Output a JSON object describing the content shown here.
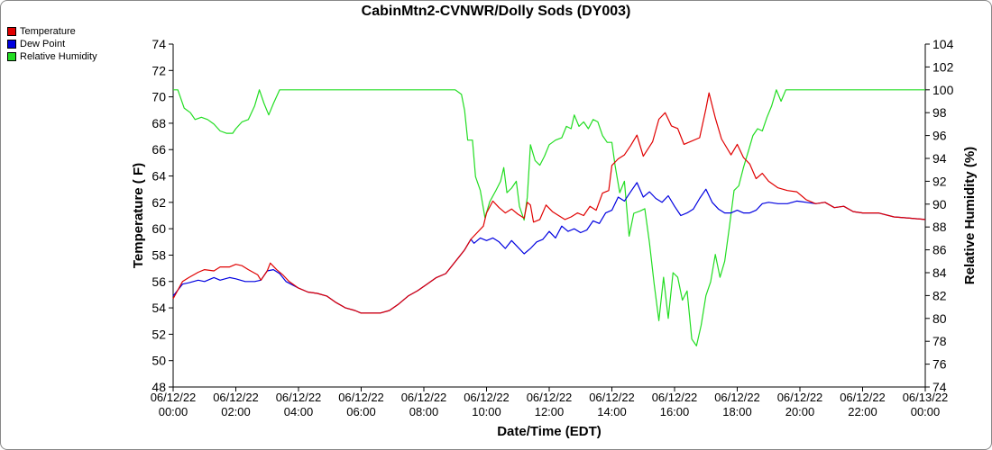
{
  "chart_data": {
    "type": "line",
    "title": "CabinMtn2-CVNWR/Dolly Sods (DY003)",
    "xlabel": "Date/Time (EDT)",
    "ylabel_left": "Temperature ( F)",
    "ylabel_right": "Relative Humidity (%)",
    "x_range_hours": [
      0,
      24
    ],
    "x_ticks": [
      {
        "date": "06/12/22",
        "time": "00:00"
      },
      {
        "date": "06/12/22",
        "time": "02:00"
      },
      {
        "date": "06/12/22",
        "time": "04:00"
      },
      {
        "date": "06/12/22",
        "time": "06:00"
      },
      {
        "date": "06/12/22",
        "time": "08:00"
      },
      {
        "date": "06/12/22",
        "time": "10:00"
      },
      {
        "date": "06/12/22",
        "time": "12:00"
      },
      {
        "date": "06/12/22",
        "time": "14:00"
      },
      {
        "date": "06/12/22",
        "time": "16:00"
      },
      {
        "date": "06/12/22",
        "time": "18:00"
      },
      {
        "date": "06/12/22",
        "time": "20:00"
      },
      {
        "date": "06/12/22",
        "time": "22:00"
      },
      {
        "date": "06/13/22",
        "time": "00:00"
      }
    ],
    "ylim_left": [
      48,
      74
    ],
    "left_ticks": [
      48,
      50,
      52,
      54,
      56,
      58,
      60,
      62,
      64,
      66,
      68,
      70,
      72,
      74
    ],
    "ylim_right": [
      74,
      104
    ],
    "right_ticks": [
      74,
      76,
      78,
      80,
      82,
      84,
      86,
      88,
      90,
      92,
      94,
      96,
      98,
      100,
      102,
      104
    ],
    "grid": false,
    "legend_position": "top-left",
    "series": [
      {
        "name": "Temperature",
        "axis": "left",
        "color": "#e00000",
        "points": [
          [
            0.0,
            54.7
          ],
          [
            0.3,
            56.0
          ],
          [
            0.5,
            56.3
          ],
          [
            0.8,
            56.7
          ],
          [
            1.0,
            56.9
          ],
          [
            1.3,
            56.8
          ],
          [
            1.5,
            57.1
          ],
          [
            1.8,
            57.1
          ],
          [
            2.0,
            57.3
          ],
          [
            2.2,
            57.2
          ],
          [
            2.4,
            56.9
          ],
          [
            2.7,
            56.5
          ],
          [
            2.8,
            56.1
          ],
          [
            3.0,
            56.8
          ],
          [
            3.1,
            57.4
          ],
          [
            3.3,
            56.9
          ],
          [
            3.5,
            56.5
          ],
          [
            3.7,
            56.0
          ],
          [
            4.0,
            55.5
          ],
          [
            4.3,
            55.2
          ],
          [
            4.6,
            55.1
          ],
          [
            4.9,
            54.9
          ],
          [
            5.2,
            54.4
          ],
          [
            5.5,
            54.0
          ],
          [
            5.8,
            53.8
          ],
          [
            6.0,
            53.6
          ],
          [
            6.3,
            53.6
          ],
          [
            6.6,
            53.6
          ],
          [
            6.9,
            53.8
          ],
          [
            7.2,
            54.3
          ],
          [
            7.5,
            54.9
          ],
          [
            7.8,
            55.3
          ],
          [
            8.1,
            55.8
          ],
          [
            8.4,
            56.3
          ],
          [
            8.7,
            56.6
          ],
          [
            9.0,
            57.5
          ],
          [
            9.3,
            58.4
          ],
          [
            9.5,
            59.2
          ],
          [
            9.7,
            59.7
          ],
          [
            9.9,
            60.2
          ],
          [
            10.0,
            61.2
          ],
          [
            10.2,
            62.1
          ],
          [
            10.4,
            61.6
          ],
          [
            10.6,
            61.2
          ],
          [
            10.8,
            61.5
          ],
          [
            11.0,
            61.1
          ],
          [
            11.2,
            60.8
          ],
          [
            11.3,
            62.0
          ],
          [
            11.4,
            61.8
          ],
          [
            11.5,
            60.5
          ],
          [
            11.7,
            60.7
          ],
          [
            11.9,
            61.8
          ],
          [
            12.1,
            61.3
          ],
          [
            12.3,
            61.0
          ],
          [
            12.5,
            60.7
          ],
          [
            12.7,
            60.9
          ],
          [
            12.9,
            61.2
          ],
          [
            13.1,
            61.0
          ],
          [
            13.3,
            61.7
          ],
          [
            13.5,
            61.4
          ],
          [
            13.7,
            62.7
          ],
          [
            13.9,
            62.9
          ],
          [
            14.0,
            64.8
          ],
          [
            14.2,
            65.3
          ],
          [
            14.4,
            65.6
          ],
          [
            14.6,
            66.3
          ],
          [
            14.8,
            67.1
          ],
          [
            15.0,
            65.5
          ],
          [
            15.3,
            66.6
          ],
          [
            15.5,
            68.3
          ],
          [
            15.7,
            68.8
          ],
          [
            15.9,
            67.8
          ],
          [
            16.1,
            67.6
          ],
          [
            16.3,
            66.4
          ],
          [
            16.5,
            66.6
          ],
          [
            16.8,
            66.9
          ],
          [
            17.0,
            69.1
          ],
          [
            17.1,
            70.3
          ],
          [
            17.3,
            68.4
          ],
          [
            17.5,
            66.8
          ],
          [
            17.8,
            65.6
          ],
          [
            18.0,
            66.4
          ],
          [
            18.2,
            65.4
          ],
          [
            18.4,
            64.9
          ],
          [
            18.6,
            63.8
          ],
          [
            18.8,
            64.2
          ],
          [
            19.0,
            63.6
          ],
          [
            19.3,
            63.1
          ],
          [
            19.6,
            62.9
          ],
          [
            19.9,
            62.8
          ],
          [
            20.2,
            62.2
          ],
          [
            20.5,
            61.9
          ],
          [
            20.8,
            62.0
          ],
          [
            21.1,
            61.6
          ],
          [
            21.4,
            61.7
          ],
          [
            21.7,
            61.3
          ],
          [
            22.0,
            61.2
          ],
          [
            22.5,
            61.2
          ],
          [
            23.0,
            60.9
          ],
          [
            23.5,
            60.8
          ],
          [
            24.0,
            60.7
          ]
        ]
      },
      {
        "name": "Dew Point",
        "axis": "left",
        "color": "#0000e0",
        "points": [
          [
            0.0,
            54.9
          ],
          [
            0.3,
            55.8
          ],
          [
            0.5,
            55.9
          ],
          [
            0.8,
            56.1
          ],
          [
            1.0,
            56.0
          ],
          [
            1.3,
            56.3
          ],
          [
            1.5,
            56.1
          ],
          [
            1.8,
            56.3
          ],
          [
            2.0,
            56.2
          ],
          [
            2.3,
            56.0
          ],
          [
            2.6,
            56.0
          ],
          [
            2.8,
            56.1
          ],
          [
            3.0,
            56.8
          ],
          [
            3.2,
            56.9
          ],
          [
            3.4,
            56.6
          ],
          [
            3.6,
            56.0
          ],
          [
            4.0,
            55.5
          ],
          [
            4.3,
            55.2
          ],
          [
            4.6,
            55.1
          ],
          [
            4.9,
            54.9
          ],
          [
            5.2,
            54.4
          ],
          [
            5.5,
            54.0
          ],
          [
            5.8,
            53.8
          ],
          [
            6.0,
            53.6
          ],
          [
            6.3,
            53.6
          ],
          [
            6.6,
            53.6
          ],
          [
            6.9,
            53.8
          ],
          [
            7.2,
            54.3
          ],
          [
            7.5,
            54.9
          ],
          [
            7.8,
            55.3
          ],
          [
            8.1,
            55.8
          ],
          [
            8.4,
            56.3
          ],
          [
            8.7,
            56.6
          ],
          [
            9.0,
            57.5
          ],
          [
            9.3,
            58.4
          ],
          [
            9.5,
            59.2
          ],
          [
            9.6,
            58.9
          ],
          [
            9.8,
            59.3
          ],
          [
            10.0,
            59.1
          ],
          [
            10.2,
            59.3
          ],
          [
            10.4,
            59.0
          ],
          [
            10.6,
            58.5
          ],
          [
            10.8,
            59.1
          ],
          [
            11.0,
            58.6
          ],
          [
            11.2,
            58.1
          ],
          [
            11.4,
            58.5
          ],
          [
            11.6,
            59.0
          ],
          [
            11.8,
            59.2
          ],
          [
            12.0,
            59.8
          ],
          [
            12.2,
            59.3
          ],
          [
            12.4,
            60.2
          ],
          [
            12.6,
            59.8
          ],
          [
            12.8,
            60.0
          ],
          [
            13.0,
            59.7
          ],
          [
            13.2,
            59.9
          ],
          [
            13.4,
            60.6
          ],
          [
            13.6,
            60.4
          ],
          [
            13.8,
            61.2
          ],
          [
            14.0,
            61.4
          ],
          [
            14.2,
            62.4
          ],
          [
            14.4,
            62.1
          ],
          [
            14.6,
            62.8
          ],
          [
            14.8,
            63.5
          ],
          [
            15.0,
            62.4
          ],
          [
            15.2,
            62.8
          ],
          [
            15.4,
            62.3
          ],
          [
            15.6,
            62.0
          ],
          [
            15.8,
            62.5
          ],
          [
            16.0,
            61.7
          ],
          [
            16.2,
            61.0
          ],
          [
            16.4,
            61.2
          ],
          [
            16.6,
            61.5
          ],
          [
            16.8,
            62.3
          ],
          [
            17.0,
            63.0
          ],
          [
            17.2,
            62.0
          ],
          [
            17.4,
            61.5
          ],
          [
            17.6,
            61.2
          ],
          [
            17.8,
            61.2
          ],
          [
            18.0,
            61.4
          ],
          [
            18.2,
            61.2
          ],
          [
            18.4,
            61.2
          ],
          [
            18.6,
            61.4
          ],
          [
            18.8,
            61.9
          ],
          [
            19.0,
            62.0
          ],
          [
            19.3,
            61.9
          ],
          [
            19.6,
            61.9
          ],
          [
            19.9,
            62.1
          ],
          [
            20.2,
            62.0
          ],
          [
            20.5,
            61.9
          ],
          [
            20.8,
            62.0
          ],
          [
            21.1,
            61.6
          ],
          [
            21.4,
            61.7
          ],
          [
            21.7,
            61.3
          ],
          [
            22.0,
            61.2
          ],
          [
            22.5,
            61.2
          ],
          [
            23.0,
            60.9
          ],
          [
            23.5,
            60.8
          ],
          [
            24.0,
            60.7
          ]
        ]
      },
      {
        "name": "Relative Humidity",
        "axis": "right",
        "color": "#22dd22",
        "points": [
          [
            0.0,
            100.0
          ],
          [
            0.15,
            100.0
          ],
          [
            0.35,
            98.4
          ],
          [
            0.55,
            98.0
          ],
          [
            0.7,
            97.4
          ],
          [
            0.9,
            97.6
          ],
          [
            1.1,
            97.4
          ],
          [
            1.3,
            97.0
          ],
          [
            1.5,
            96.4
          ],
          [
            1.7,
            96.2
          ],
          [
            1.9,
            96.2
          ],
          [
            2.0,
            96.6
          ],
          [
            2.2,
            97.2
          ],
          [
            2.4,
            97.4
          ],
          [
            2.6,
            98.6
          ],
          [
            2.75,
            100.0
          ],
          [
            2.9,
            98.8
          ],
          [
            3.05,
            97.8
          ],
          [
            3.2,
            98.8
          ],
          [
            3.4,
            100.0
          ],
          [
            4.0,
            100.0
          ],
          [
            6.0,
            100.0
          ],
          [
            8.0,
            100.0
          ],
          [
            9.0,
            100.0
          ],
          [
            9.2,
            99.6
          ],
          [
            9.3,
            98.2
          ],
          [
            9.4,
            95.6
          ],
          [
            9.55,
            95.6
          ],
          [
            9.65,
            92.4
          ],
          [
            9.8,
            91.2
          ],
          [
            9.95,
            88.8
          ],
          [
            10.1,
            90.2
          ],
          [
            10.3,
            91.2
          ],
          [
            10.45,
            92.0
          ],
          [
            10.55,
            93.2
          ],
          [
            10.65,
            91.0
          ],
          [
            10.8,
            91.4
          ],
          [
            10.95,
            92.0
          ],
          [
            11.05,
            89.8
          ],
          [
            11.2,
            88.6
          ],
          [
            11.3,
            90.6
          ],
          [
            11.4,
            95.2
          ],
          [
            11.55,
            93.8
          ],
          [
            11.7,
            93.4
          ],
          [
            11.85,
            94.2
          ],
          [
            12.0,
            95.2
          ],
          [
            12.2,
            95.6
          ],
          [
            12.4,
            95.8
          ],
          [
            12.55,
            96.8
          ],
          [
            12.7,
            96.6
          ],
          [
            12.8,
            97.8
          ],
          [
            12.95,
            96.8
          ],
          [
            13.1,
            97.2
          ],
          [
            13.25,
            96.6
          ],
          [
            13.4,
            97.4
          ],
          [
            13.55,
            97.2
          ],
          [
            13.7,
            96.0
          ],
          [
            13.85,
            95.4
          ],
          [
            14.0,
            95.4
          ],
          [
            14.1,
            93.4
          ],
          [
            14.25,
            91.0
          ],
          [
            14.4,
            92.0
          ],
          [
            14.55,
            87.2
          ],
          [
            14.7,
            89.2
          ],
          [
            14.9,
            89.4
          ],
          [
            15.05,
            89.6
          ],
          [
            15.2,
            86.6
          ],
          [
            15.35,
            83.0
          ],
          [
            15.5,
            79.8
          ],
          [
            15.65,
            83.6
          ],
          [
            15.8,
            80.0
          ],
          [
            15.95,
            84.0
          ],
          [
            16.1,
            83.6
          ],
          [
            16.25,
            81.6
          ],
          [
            16.4,
            82.4
          ],
          [
            16.55,
            78.2
          ],
          [
            16.7,
            77.6
          ],
          [
            16.85,
            79.4
          ],
          [
            17.0,
            82.0
          ],
          [
            17.15,
            83.2
          ],
          [
            17.3,
            85.6
          ],
          [
            17.45,
            83.6
          ],
          [
            17.6,
            85.0
          ],
          [
            17.75,
            88.0
          ],
          [
            17.9,
            91.2
          ],
          [
            18.05,
            91.6
          ],
          [
            18.2,
            93.2
          ],
          [
            18.35,
            94.6
          ],
          [
            18.5,
            96.0
          ],
          [
            18.65,
            96.6
          ],
          [
            18.8,
            96.4
          ],
          [
            18.95,
            97.6
          ],
          [
            19.1,
            98.6
          ],
          [
            19.25,
            100.0
          ],
          [
            19.4,
            99.0
          ],
          [
            19.55,
            100.0
          ],
          [
            20.0,
            100.0
          ],
          [
            22.0,
            100.0
          ],
          [
            24.0,
            100.0
          ]
        ]
      }
    ]
  }
}
